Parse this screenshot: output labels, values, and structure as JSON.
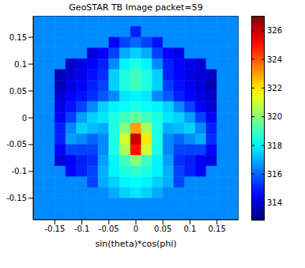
{
  "chart_data": {
    "type": "heatmap",
    "title": "GeoSTAR TB Image packet=59",
    "x_label": "sin(theta)*cos(phi)",
    "x": [
      -0.18,
      -0.16,
      -0.14,
      -0.12,
      -0.1,
      -0.08,
      -0.06,
      -0.04,
      -0.02,
      0,
      0.02,
      0.04,
      0.06,
      0.08,
      0.1,
      0.12,
      0.14,
      0.16,
      0.18
    ],
    "y": [
      0.18,
      0.16,
      0.14,
      0.12,
      0.1,
      0.08,
      0.06,
      0.04,
      0.02,
      0,
      -0.02,
      -0.04,
      -0.06,
      -0.08,
      -0.1,
      -0.12,
      -0.14,
      -0.16,
      -0.18
    ],
    "values": [
      [
        316.5,
        316.5,
        316.5,
        316.5,
        316.5,
        316.5,
        316.5,
        316.5,
        316.5,
        316.5,
        316.5,
        316.5,
        316.5,
        316.5,
        316.5,
        316.5,
        316.5,
        316.5,
        316.5
      ],
      [
        316.5,
        316.5,
        316.5,
        316.5,
        316.5,
        316.5,
        316.5,
        316.5,
        316.5,
        315,
        316.5,
        316.5,
        316.5,
        316.5,
        316.5,
        316.5,
        316.5,
        316.5,
        316.5
      ],
      [
        316.5,
        316.5,
        316.5,
        316.5,
        316.5,
        316.5,
        316.5,
        314.5,
        315.5,
        316,
        315.5,
        314.8,
        316.5,
        316.5,
        316.5,
        316.5,
        316.5,
        316.5,
        316.5
      ],
      [
        316.5,
        316.5,
        316.5,
        316.5,
        316.5,
        314,
        314.5,
        315.5,
        317,
        317.5,
        317,
        315.5,
        314.6,
        314.2,
        316.5,
        316.5,
        316.5,
        316.5,
        316.5
      ],
      [
        316.5,
        316.5,
        316.5,
        313.8,
        314.2,
        314.6,
        315,
        316.5,
        318,
        318.5,
        318,
        316.5,
        315,
        314.5,
        314.3,
        314,
        316.5,
        316.5,
        316.5
      ],
      [
        316.5,
        316.5,
        313.5,
        314,
        314.3,
        314.8,
        315.2,
        317.5,
        318.5,
        319,
        318.5,
        317.5,
        315,
        314.6,
        314.2,
        314,
        313.8,
        316.5,
        316.5
      ],
      [
        316.5,
        316.5,
        313.6,
        314.2,
        314.6,
        315,
        315.5,
        317.5,
        318.5,
        319,
        318.5,
        317.5,
        315.4,
        314.8,
        314.4,
        314,
        313.5,
        316.5,
        316.5
      ],
      [
        316.5,
        316.5,
        314,
        314.5,
        314.8,
        315.2,
        315.8,
        316.5,
        317.8,
        318,
        317.8,
        316.5,
        315.8,
        315,
        314.6,
        314.2,
        313.8,
        316.5,
        316.5
      ],
      [
        316.5,
        316.5,
        314.2,
        314.8,
        315.5,
        316.5,
        317.5,
        318,
        318.2,
        318.5,
        318.2,
        318,
        317.5,
        316.5,
        315.5,
        314.6,
        314,
        316.5,
        316.5
      ],
      [
        316.5,
        316.5,
        314.5,
        315.5,
        316.8,
        317.5,
        317.8,
        318.5,
        319,
        319.5,
        319,
        318.5,
        317.8,
        317.5,
        316.8,
        315.5,
        314.4,
        316.5,
        316.5
      ],
      [
        316.5,
        316.5,
        315,
        316.5,
        317.5,
        317.2,
        317,
        318.5,
        320,
        323,
        320.5,
        318.5,
        317,
        317.2,
        317.5,
        316.5,
        315,
        316.5,
        316.5
      ],
      [
        316.5,
        316.5,
        315,
        316.8,
        316.5,
        316,
        316.5,
        318.5,
        321,
        326,
        322,
        318.5,
        316.5,
        316,
        316.5,
        317,
        315.2,
        316.5,
        316.5
      ],
      [
        316.5,
        316.5,
        314.5,
        315.5,
        315.5,
        315.5,
        316.5,
        318.5,
        320.5,
        325,
        321,
        318.5,
        316.5,
        315.5,
        315.5,
        315.5,
        314.6,
        316.5,
        316.5
      ],
      [
        316.5,
        316.5,
        314,
        314.5,
        315,
        315.2,
        316.8,
        318,
        319,
        320,
        319,
        318,
        316.8,
        315.2,
        315,
        314.5,
        314.2,
        316.5,
        316.5
      ],
      [
        316.5,
        316.5,
        316.5,
        314.5,
        315,
        315.5,
        317,
        318,
        318.5,
        318.8,
        318.5,
        318,
        317,
        315.5,
        315,
        314.5,
        316.5,
        316.5,
        316.5
      ],
      [
        316.5,
        316.5,
        316.5,
        316.5,
        316.5,
        315.5,
        317,
        317.5,
        318,
        318.2,
        318,
        317.5,
        317,
        315.5,
        316.5,
        316.5,
        316.5,
        316.5,
        316.5
      ],
      [
        316.5,
        316.5,
        316.5,
        316.5,
        316.5,
        316.5,
        316.5,
        317,
        317.5,
        317.8,
        317.5,
        317,
        316.5,
        316.5,
        316.5,
        316.5,
        316.5,
        316.5,
        316.5
      ],
      [
        316.5,
        316.5,
        316.5,
        316.5,
        316.5,
        316.5,
        316.5,
        316.5,
        316.5,
        316.5,
        316.5,
        316.5,
        316.5,
        316.5,
        316.5,
        316.5,
        316.5,
        316.5,
        316.5
      ],
      [
        316.5,
        316.5,
        316.5,
        316.5,
        316.5,
        316.5,
        316.5,
        316.5,
        316.5,
        316.5,
        316.5,
        316.5,
        316.5,
        316.5,
        316.5,
        316.5,
        316.5,
        316.5,
        316.5
      ]
    ],
    "xlim": [
      -0.19,
      0.19
    ],
    "ylim": [
      -0.19,
      0.19
    ],
    "xticks": [
      -0.15,
      -0.1,
      -0.05,
      0,
      0.05,
      0.1,
      0.15
    ],
    "yticks": [
      -0.15,
      -0.1,
      -0.05,
      0,
      0.05,
      0.1,
      0.15
    ],
    "colorbar": {
      "range": [
        312.8,
        327
      ],
      "ticks": [
        314,
        316,
        318,
        320,
        322,
        324,
        326
      ]
    }
  }
}
